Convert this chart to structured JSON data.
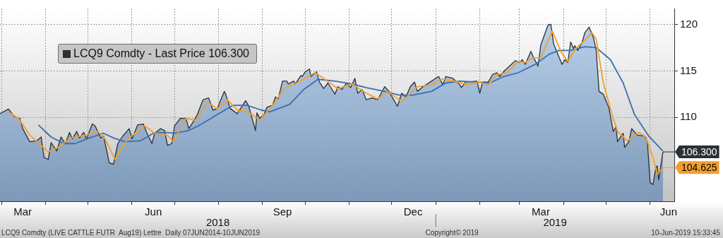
{
  "chart_data": {
    "type": "area",
    "xlim": [
      "2018-02-28",
      "2019-06-18"
    ],
    "xticks": [
      {
        "value": "2018-03-01",
        "label": null
      },
      {
        "value": "2018-04-01",
        "label": null
      },
      {
        "value": "2018-05-01",
        "label": null
      },
      {
        "value": "2018-06-01",
        "label": null
      },
      {
        "value": "2018-07-01",
        "label": null
      },
      {
        "value": "2018-08-01",
        "label": null
      },
      {
        "value": "2018-09-01",
        "label": null
      },
      {
        "value": "2018-10-01",
        "label": null
      },
      {
        "value": "2018-11-01",
        "label": null
      },
      {
        "value": "2018-12-01",
        "label": null
      },
      {
        "value": "2019-01-01",
        "label": null
      },
      {
        "value": "2019-02-01",
        "label": null
      },
      {
        "value": "2019-03-01",
        "label": null
      },
      {
        "value": "2019-04-01",
        "label": null
      },
      {
        "value": "2019-05-01",
        "label": null
      },
      {
        "value": "2019-06-01",
        "label": null
      },
      {
        "value": "2018-03-16",
        "label": "Mar"
      },
      {
        "value": "2018-06-16",
        "label": "Jun"
      },
      {
        "value": "2018-09-15",
        "label": "Sep"
      },
      {
        "value": "2018-12-16",
        "label": "Dec"
      },
      {
        "value": "2019-03-16",
        "label": "Mar"
      },
      {
        "value": "2019-06-14",
        "label": "Jun"
      }
    ],
    "ylim": [
      101,
      121.7
    ],
    "yticks": [
      110,
      115,
      120
    ],
    "grid": true,
    "legend": "top left",
    "series": [
      {
        "name": "LCQ9 Comdty - Last Price 106.300",
        "color": "#2b2f36",
        "x": [
          "2018-02-28",
          "2018-03-06",
          "2018-03-10",
          "2018-03-14",
          "2018-03-16",
          "2018-03-21",
          "2018-03-26",
          "2018-03-29",
          "2018-03-31",
          "2018-04-03",
          "2018-04-05",
          "2018-04-09",
          "2018-04-12",
          "2018-04-15",
          "2018-04-18",
          "2018-04-20",
          "2018-04-23",
          "2018-04-25",
          "2018-04-28",
          "2018-04-30",
          "2018-05-04",
          "2018-05-06",
          "2018-05-10",
          "2018-05-12",
          "2018-05-16",
          "2018-05-19",
          "2018-05-22",
          "2018-05-25",
          "2018-05-30",
          "2018-06-01",
          "2018-06-05",
          "2018-06-09",
          "2018-06-11",
          "2018-06-15",
          "2018-06-17",
          "2018-06-21",
          "2018-06-24",
          "2018-06-26",
          "2018-06-29",
          "2018-07-01",
          "2018-07-05",
          "2018-07-09",
          "2018-07-11",
          "2018-07-14",
          "2018-07-17",
          "2018-07-21",
          "2018-07-25",
          "2018-07-28",
          "2018-07-31",
          "2018-08-02",
          "2018-08-05",
          "2018-08-06",
          "2018-08-09",
          "2018-08-14",
          "2018-08-20",
          "2018-08-22",
          "2018-08-25",
          "2018-08-27",
          "2018-08-28",
          "2018-08-30",
          "2018-09-02",
          "2018-09-04",
          "2018-09-08",
          "2018-09-10",
          "2018-09-12",
          "2018-09-15",
          "2018-09-18",
          "2018-09-19",
          "2018-09-23",
          "2018-09-24",
          "2018-09-28",
          "2018-09-29",
          "2018-10-01",
          "2018-10-04",
          "2018-10-05",
          "2018-10-09",
          "2018-10-11",
          "2018-10-14",
          "2018-10-17",
          "2018-10-22",
          "2018-10-24",
          "2018-10-27",
          "2018-10-30",
          "2018-11-02",
          "2018-11-05",
          "2018-11-07",
          "2018-11-10",
          "2018-11-13",
          "2018-11-17",
          "2018-11-21",
          "2018-11-26",
          "2018-11-29",
          "2018-12-05",
          "2018-12-08",
          "2018-12-11",
          "2018-12-14",
          "2018-12-17",
          "2018-12-19",
          "2018-12-23",
          "2018-12-29",
          "2019-01-03",
          "2019-01-06",
          "2019-01-08",
          "2019-01-13",
          "2019-01-18",
          "2019-01-19",
          "2019-01-22",
          "2019-01-30",
          "2019-02-01",
          "2019-02-03",
          "2019-02-07",
          "2019-02-10",
          "2019-02-13",
          "2019-02-15",
          "2019-02-19",
          "2019-02-26",
          "2019-03-01",
          "2019-03-03",
          "2019-03-05",
          "2019-03-09",
          "2019-03-11",
          "2019-03-14",
          "2019-03-16",
          "2019-03-21",
          "2019-03-23",
          "2019-03-25",
          "2019-03-29",
          "2019-03-31",
          "2019-04-02",
          "2019-04-04",
          "2019-04-06",
          "2019-04-08",
          "2019-04-09",
          "2019-04-11",
          "2019-04-14",
          "2019-04-16",
          "2019-04-19",
          "2019-04-22",
          "2019-04-24",
          "2019-04-26",
          "2019-04-29",
          "2019-05-03",
          "2019-05-06",
          "2019-05-08",
          "2019-05-09",
          "2019-05-13",
          "2019-05-14",
          "2019-05-17",
          "2019-05-19",
          "2019-05-23",
          "2019-05-28",
          "2019-05-30",
          "2019-06-01",
          "2019-06-03",
          "2019-06-05",
          "2019-06-06",
          "2019-06-07",
          "2019-06-10"
        ],
        "values": [
          110.4,
          110.9,
          110.1,
          109.9,
          108.8,
          107.4,
          107.5,
          107.9,
          105.7,
          105.5,
          107.3,
          106.4,
          107.9,
          107.2,
          108.4,
          107.7,
          108.5,
          107.8,
          108.4,
          107.7,
          109.3,
          109.1,
          107.8,
          108.0,
          105.1,
          105.0,
          107.2,
          107.9,
          108.8,
          107.7,
          109.2,
          109.3,
          108.5,
          107.2,
          108.3,
          108.8,
          108.6,
          107.0,
          107.2,
          109.1,
          109.9,
          109.9,
          108.8,
          109.5,
          110.3,
          111.9,
          112.1,
          110.8,
          110.9,
          111.7,
          112.8,
          112.5,
          111.0,
          110.4,
          111.8,
          111.3,
          109.7,
          108.6,
          110.5,
          109.9,
          110.3,
          111.1,
          111.3,
          112.2,
          112.0,
          113.9,
          113.9,
          113.6,
          113.9,
          113.6,
          114.5,
          114.4,
          114.9,
          115.2,
          114.4,
          114.9,
          113.8,
          113.1,
          113.7,
          112.5,
          113.3,
          113.0,
          113.7,
          113.2,
          114.2,
          112.6,
          113.0,
          111.9,
          112.1,
          111.9,
          113.3,
          112.8,
          111.2,
          112.6,
          112.2,
          113.3,
          113.8,
          112.8,
          113.3,
          113.9,
          114.4,
          113.5,
          114.4,
          114.2,
          113.5,
          113.2,
          113.8,
          113.9,
          112.6,
          113.8,
          113.8,
          114.6,
          114.8,
          114.4,
          115.1,
          116.1,
          115.9,
          116.2,
          115.7,
          117.1,
          116.4,
          115.5,
          117.8,
          119.9,
          120.0,
          117.9,
          116.4,
          115.7,
          116.2,
          115.9,
          118.1,
          117.4,
          117.7,
          117.2,
          118.0,
          119.1,
          119.7,
          118.6,
          117.2,
          112.8,
          112.5,
          111.0,
          108.5,
          109.0,
          107.4,
          108.3,
          106.8,
          107.4,
          108.8,
          108.1,
          108.0,
          107.5,
          103.0,
          102.8,
          104.6,
          104.8,
          103.3,
          106.3
        ]
      },
      {
        "type": "line",
        "color": "#f0a030",
        "x": [
          "2018-03-06",
          "2018-03-13",
          "2018-03-21",
          "2018-04-03",
          "2018-04-10",
          "2018-04-19",
          "2018-04-29",
          "2018-05-08",
          "2018-05-13",
          "2018-05-20",
          "2018-05-29",
          "2018-06-10",
          "2018-06-17",
          "2018-06-26",
          "2018-06-30",
          "2018-07-09",
          "2018-07-16",
          "2018-07-24",
          "2018-07-31",
          "2018-08-07",
          "2018-08-15",
          "2018-08-18",
          "2018-08-25",
          "2018-08-30",
          "2018-09-09",
          "2018-09-16",
          "2018-09-25",
          "2018-10-08",
          "2018-10-14",
          "2018-10-24",
          "2018-11-03",
          "2018-11-13",
          "2018-11-21",
          "2018-11-28",
          "2018-12-08",
          "2018-12-19",
          "2018-12-29",
          "2019-01-05",
          "2019-01-14",
          "2019-01-23",
          "2019-01-31",
          "2019-02-07",
          "2019-02-13",
          "2019-02-20",
          "2019-02-28",
          "2019-03-05",
          "2019-03-10",
          "2019-03-16",
          "2019-03-24",
          "2019-03-30",
          "2019-04-04",
          "2019-04-09",
          "2019-04-16",
          "2019-04-21",
          "2019-04-24",
          "2019-04-29",
          "2019-05-06",
          "2019-05-09",
          "2019-05-16",
          "2019-05-24",
          "2019-05-29",
          "2019-06-03",
          "2019-06-06",
          "2019-06-10"
        ],
        "values": [
          110.6,
          109.9,
          108.1,
          106.3,
          106.8,
          107.8,
          108.1,
          108.5,
          107.7,
          105.5,
          107.7,
          109.1,
          108.3,
          108.1,
          107.4,
          109.9,
          109.7,
          111.7,
          110.9,
          111.9,
          110.7,
          110.8,
          110.3,
          109.7,
          111.5,
          113.1,
          113.7,
          114.8,
          114.2,
          113.1,
          113.6,
          112.6,
          112.0,
          112.8,
          111.7,
          113.3,
          113.5,
          114.1,
          113.9,
          113.5,
          113.8,
          113.5,
          114.6,
          114.8,
          116.0,
          115.9,
          116.4,
          116.4,
          119.3,
          117.1,
          116.0,
          117.3,
          118.3,
          119.1,
          118.4,
          113.7,
          109.9,
          108.5,
          107.5,
          108.4,
          107.9,
          105.7,
          103.9,
          104.625
        ]
      },
      {
        "type": "line",
        "color": "#3a6fb0",
        "x": [
          "2018-03-27",
          "2018-04-05",
          "2018-04-14",
          "2018-04-22",
          "2018-05-02",
          "2018-05-12",
          "2018-05-19",
          "2018-05-27",
          "2018-06-07",
          "2018-06-16",
          "2018-06-24",
          "2018-07-01",
          "2018-07-11",
          "2018-07-19",
          "2018-08-01",
          "2018-08-11",
          "2018-08-21",
          "2018-08-31",
          "2018-09-06",
          "2018-09-20",
          "2018-09-30",
          "2018-10-10",
          "2018-10-22",
          "2018-11-03",
          "2018-11-13",
          "2018-11-26",
          "2018-12-06",
          "2018-12-16",
          "2018-12-29",
          "2019-01-08",
          "2019-01-18",
          "2019-01-29",
          "2019-02-08",
          "2019-02-18",
          "2019-02-28",
          "2019-03-12",
          "2019-03-22",
          "2019-03-29",
          "2019-04-06",
          "2019-04-16",
          "2019-04-24",
          "2019-05-04",
          "2019-05-13",
          "2019-05-21",
          "2019-05-31",
          "2019-06-10"
        ],
        "values": [
          109.2,
          107.9,
          107.2,
          107.2,
          107.8,
          108.3,
          107.8,
          107.4,
          107.5,
          108.3,
          108.4,
          108.3,
          108.6,
          109.2,
          110.4,
          111.3,
          111.3,
          110.8,
          110.6,
          111.4,
          113.0,
          114.1,
          113.9,
          113.6,
          113.2,
          112.8,
          112.4,
          112.4,
          112.8,
          113.7,
          113.9,
          113.8,
          113.7,
          114.4,
          114.8,
          115.7,
          116.8,
          117.2,
          117.2,
          117.6,
          117.5,
          116.2,
          113.7,
          110.3,
          108.0,
          106.4
        ]
      }
    ],
    "annotations": [
      {
        "text": "106.300",
        "x": "2019-06-10",
        "y": 106.3
      },
      {
        "text": "104.625",
        "x": "2019-06-10",
        "y": 104.625
      },
      "2018",
      "2019",
      "LCQ9 Comdty (LIVE CATTLE FUTR  Aug19) Lettre  Daily 07JUN2014-10JUN2019",
      "Copyright© 2019",
      "10-Jun-2019 15:33:45"
    ]
  }
}
